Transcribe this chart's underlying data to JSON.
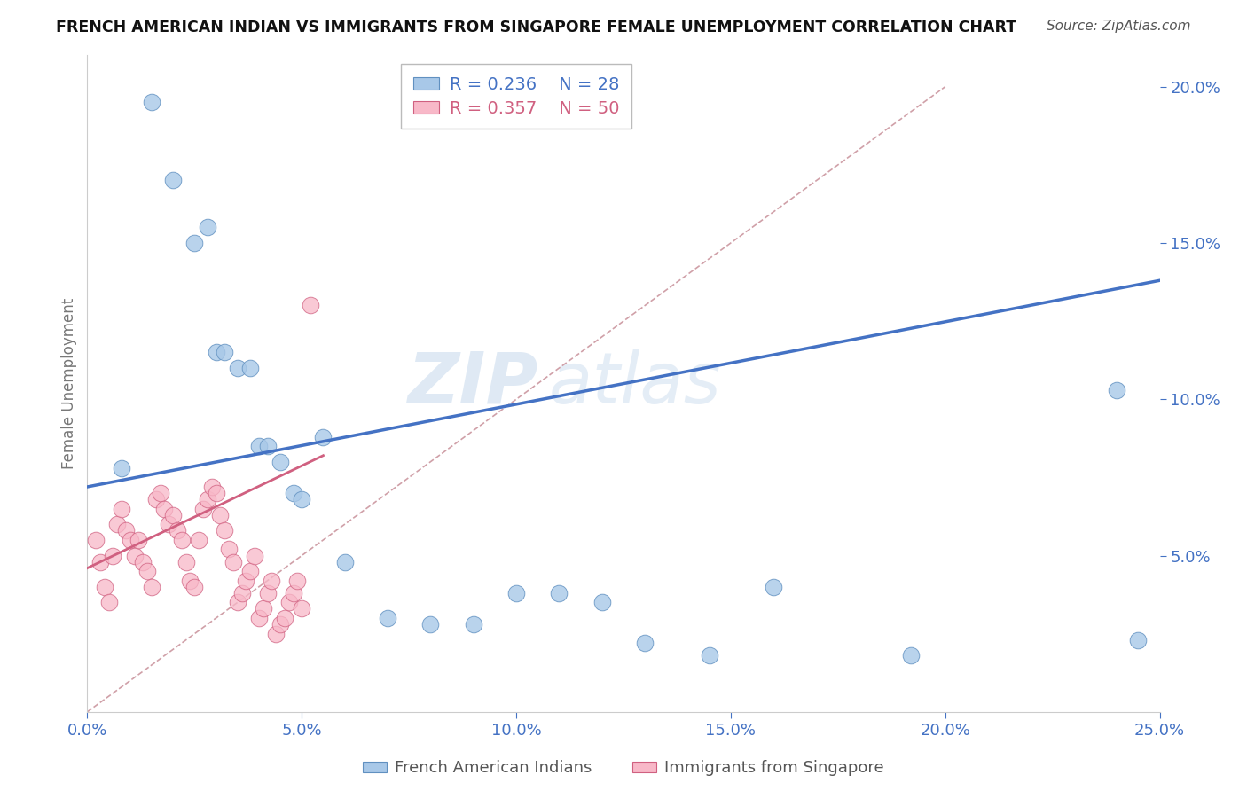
{
  "title": "FRENCH AMERICAN INDIAN VS IMMIGRANTS FROM SINGAPORE FEMALE UNEMPLOYMENT CORRELATION CHART",
  "source": "Source: ZipAtlas.com",
  "xlabel_ticks": [
    "0.0%",
    "5.0%",
    "10.0%",
    "15.0%",
    "20.0%",
    "25.0%"
  ],
  "xlabel_tick_vals": [
    0.0,
    0.05,
    0.1,
    0.15,
    0.2,
    0.25
  ],
  "ylabel_ticks": [
    "5.0%",
    "10.0%",
    "15.0%",
    "20.0%"
  ],
  "ylabel_tick_vals": [
    0.05,
    0.1,
    0.15,
    0.2
  ],
  "xmin": 0.0,
  "xmax": 0.25,
  "ymin": 0.0,
  "ymax": 0.21,
  "watermark_zip": "ZIP",
  "watermark_atlas": "atlas",
  "legend_blue_r": "R = 0.236",
  "legend_blue_n": "N = 28",
  "legend_pink_r": "R = 0.357",
  "legend_pink_n": "N = 50",
  "legend_label_blue": "French American Indians",
  "legend_label_pink": "Immigrants from Singapore",
  "blue_color": "#a8c8e8",
  "blue_edge_color": "#6090c0",
  "blue_line_color": "#4472c4",
  "pink_color": "#f8b8c8",
  "pink_edge_color": "#d06080",
  "pink_line_color": "#d06080",
  "diag_line_color": "#d0a0a8",
  "grid_color": "#d8d8d8",
  "background_color": "#ffffff",
  "tick_color": "#4472c4",
  "ylabel_label_color": "#777777",
  "blue_scatter_x": [
    0.008,
    0.015,
    0.02,
    0.025,
    0.028,
    0.03,
    0.032,
    0.035,
    0.038,
    0.04,
    0.042,
    0.045,
    0.048,
    0.05,
    0.055,
    0.06,
    0.07,
    0.08,
    0.09,
    0.1,
    0.11,
    0.12,
    0.13,
    0.145,
    0.16,
    0.192,
    0.24,
    0.245
  ],
  "blue_scatter_y": [
    0.078,
    0.195,
    0.17,
    0.15,
    0.155,
    0.115,
    0.115,
    0.11,
    0.11,
    0.085,
    0.085,
    0.08,
    0.07,
    0.068,
    0.088,
    0.048,
    0.03,
    0.028,
    0.028,
    0.038,
    0.038,
    0.035,
    0.022,
    0.018,
    0.04,
    0.018,
    0.103,
    0.023
  ],
  "pink_scatter_x": [
    0.002,
    0.003,
    0.004,
    0.005,
    0.006,
    0.007,
    0.008,
    0.009,
    0.01,
    0.011,
    0.012,
    0.013,
    0.014,
    0.015,
    0.016,
    0.017,
    0.018,
    0.019,
    0.02,
    0.021,
    0.022,
    0.023,
    0.024,
    0.025,
    0.026,
    0.027,
    0.028,
    0.029,
    0.03,
    0.031,
    0.032,
    0.033,
    0.034,
    0.035,
    0.036,
    0.037,
    0.038,
    0.039,
    0.04,
    0.041,
    0.042,
    0.043,
    0.044,
    0.045,
    0.046,
    0.047,
    0.048,
    0.049,
    0.05,
    0.052
  ],
  "pink_scatter_y": [
    0.055,
    0.048,
    0.04,
    0.035,
    0.05,
    0.06,
    0.065,
    0.058,
    0.055,
    0.05,
    0.055,
    0.048,
    0.045,
    0.04,
    0.068,
    0.07,
    0.065,
    0.06,
    0.063,
    0.058,
    0.055,
    0.048,
    0.042,
    0.04,
    0.055,
    0.065,
    0.068,
    0.072,
    0.07,
    0.063,
    0.058,
    0.052,
    0.048,
    0.035,
    0.038,
    0.042,
    0.045,
    0.05,
    0.03,
    0.033,
    0.038,
    0.042,
    0.025,
    0.028,
    0.03,
    0.035,
    0.038,
    0.042,
    0.033,
    0.13
  ],
  "blue_line_x0": 0.0,
  "blue_line_x1": 0.25,
  "blue_line_y0": 0.072,
  "blue_line_y1": 0.138,
  "pink_line_x0": 0.0,
  "pink_line_x1": 0.055,
  "pink_line_y0": 0.046,
  "pink_line_y1": 0.082
}
